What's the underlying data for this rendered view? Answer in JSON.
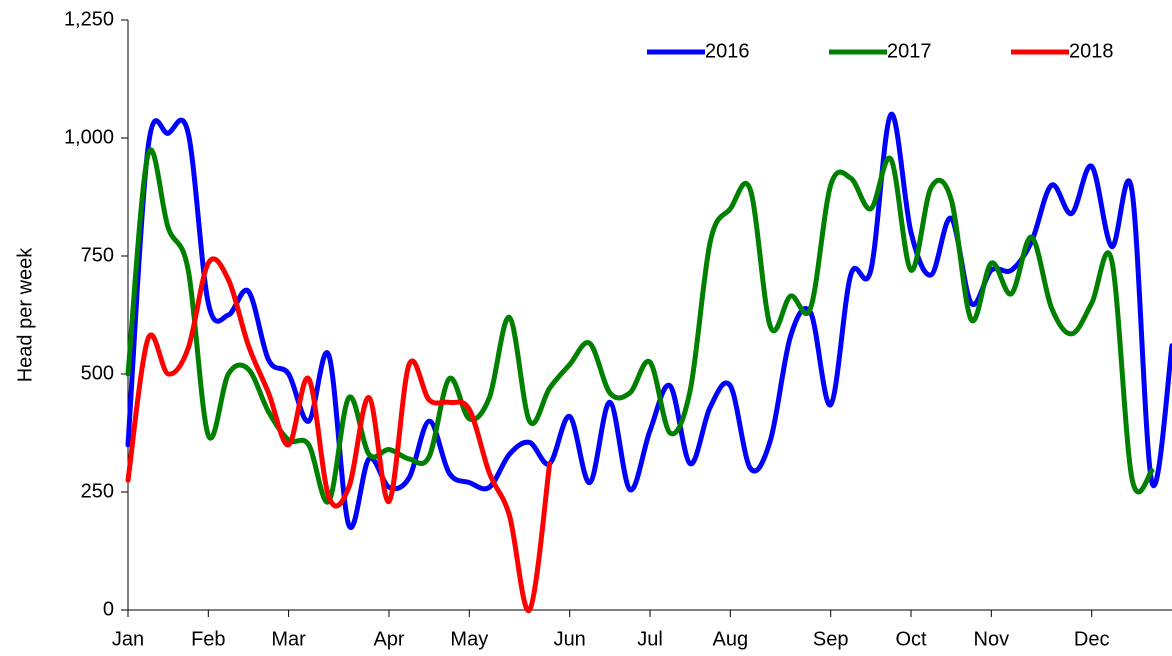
{
  "chart_data": {
    "type": "line",
    "y_label": "Head per week",
    "categories": [
      "Jan",
      null,
      null,
      null,
      "Feb",
      null,
      null,
      null,
      "Mar",
      null,
      null,
      null,
      null,
      "Apr",
      null,
      null,
      null,
      "May",
      null,
      null,
      null,
      null,
      "Jun",
      null,
      null,
      null,
      "Jul",
      null,
      null,
      null,
      "Aug",
      null,
      null,
      null,
      null,
      "Sep",
      null,
      null,
      null,
      "Oct",
      null,
      null,
      null,
      "Nov",
      null,
      null,
      null,
      null,
      "Dec",
      null,
      null,
      null,
      null
    ],
    "series": [
      {
        "name": "2016",
        "color": "#0000ff",
        "values": [
          350,
          980,
          1010,
          1010,
          650,
          625,
          675,
          530,
          500,
          400,
          540,
          180,
          320,
          260,
          280,
          400,
          290,
          270,
          260,
          330,
          355,
          310,
          410,
          270,
          440,
          255,
          380,
          475,
          310,
          430,
          475,
          300,
          360,
          580,
          630,
          435,
          710,
          720,
          1050,
          800,
          710,
          830,
          650,
          720,
          720,
          780,
          900,
          840,
          940,
          770,
          890,
          270,
          560
        ]
      },
      {
        "name": "2017",
        "color": "#008000",
        "values": [
          500,
          965,
          810,
          720,
          370,
          500,
          510,
          420,
          360,
          350,
          230,
          450,
          330,
          340,
          320,
          325,
          490,
          405,
          450,
          620,
          400,
          470,
          520,
          565,
          460,
          460,
          525,
          375,
          465,
          780,
          850,
          890,
          600,
          665,
          640,
          900,
          915,
          850,
          955,
          720,
          895,
          870,
          615,
          735,
          670,
          790,
          640,
          585,
          650,
          740,
          280,
          295,
          null
        ]
      },
      {
        "name": "2018",
        "color": "#ff0000",
        "values": [
          275,
          575,
          500,
          555,
          735,
          700,
          560,
          460,
          350,
          490,
          240,
          260,
          450,
          230,
          520,
          445,
          440,
          425,
          290,
          200,
          0,
          310,
          null,
          null,
          null,
          null,
          null,
          null,
          null,
          null,
          null,
          null,
          null,
          null,
          null,
          null,
          null,
          null,
          null,
          null,
          null,
          null,
          null,
          null,
          null,
          null,
          null,
          null,
          null,
          null,
          null,
          null,
          null
        ]
      }
    ],
    "ylim": [
      0,
      1250
    ],
    "yticks": [
      0,
      250,
      500,
      750,
      {
        "value": 1000,
        "label": "1,000"
      },
      {
        "value": 1250,
        "label": "1,250"
      }
    ],
    "legend": "top-right"
  }
}
